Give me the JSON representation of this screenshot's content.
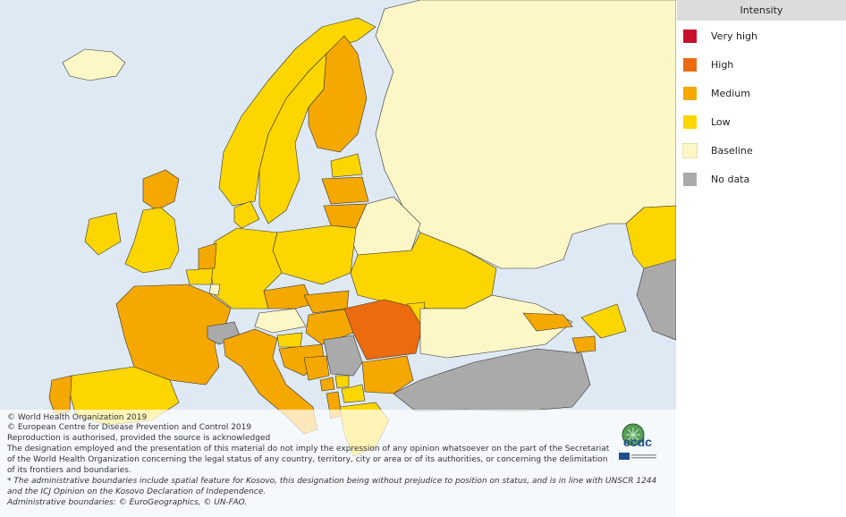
{
  "legend": {
    "title": "Intensity",
    "items": [
      {
        "label": "Very high",
        "color": "#c8102e"
      },
      {
        "label": "High",
        "color": "#ec6b0f"
      },
      {
        "label": "Medium",
        "color": "#f5a800"
      },
      {
        "label": "Low",
        "color": "#fdd600"
      },
      {
        "label": "Baseline",
        "color": "#fdf7c8"
      },
      {
        "label": "No data",
        "color": "#aaaaaa"
      }
    ]
  },
  "credits": {
    "line1": "© World Health Organization 2019",
    "line2": "© European Centre for Disease Prevention and Control 2019",
    "line3": "Reproduction is authorised, provided the source is acknowledged",
    "line4": "The designation employed and the presentation of this material do not imply the expression of any opinion whatsoever on the part of the Secretariat",
    "line5": "of the World Health Organization concerning the legal status of any country, territory, city or area or of its authorities, or concerning the delimitation",
    "line6": "of its frontiers and boundaries.",
    "line7": "* The administrative boundaries include spatial feature for Kosovo, this designation being without prejudice to position on status, and is in line with UNSCR 1244",
    "line8": "and the ICJ Opinion on the Kosovo Declaration of Independence.",
    "line9": "Administrative boundaries: © EuroGeographics, © UN-FAO."
  },
  "logo": {
    "text": "ecdc"
  },
  "map_regions": {
    "russia_east": "Baseline",
    "iceland": "Baseline",
    "norway": "Low",
    "sweden": "Low",
    "finland": "Medium",
    "estonia": "Low",
    "latvia": "Medium",
    "lithuania": "Medium",
    "belarus": "Baseline",
    "ukraine": "Low",
    "moldova": "Low",
    "poland": "Low",
    "germany": "Low",
    "denmark": "Low",
    "netherlands": "Medium",
    "belgium": "Low",
    "luxembourg": "Baseline",
    "france": "Medium",
    "united_kingdom_scotland": "Medium",
    "united_kingdom_england": "Low",
    "ireland": "Low",
    "spain": "Low",
    "portugal": "Medium",
    "switzerland": "No data",
    "austria": "Baseline",
    "czechia": "Medium",
    "slovakia": "Medium",
    "hungary": "Medium",
    "slovenia": "Low",
    "croatia": "Medium",
    "bosnia": "Medium",
    "serbia": "No data",
    "montenegro": "Medium",
    "kosovo": "Low",
    "albania": "Medium",
    "north_macedonia": "Low",
    "bulgaria": "Medium",
    "romania": "High",
    "italy": "Medium",
    "greece": "Low",
    "turkey": "No data",
    "georgia": "Medium",
    "armenia": "Medium",
    "azerbaijan": "Low",
    "kazakhstan": "Low",
    "russia_south": "Baseline",
    "black_sea_north": "Baseline"
  }
}
